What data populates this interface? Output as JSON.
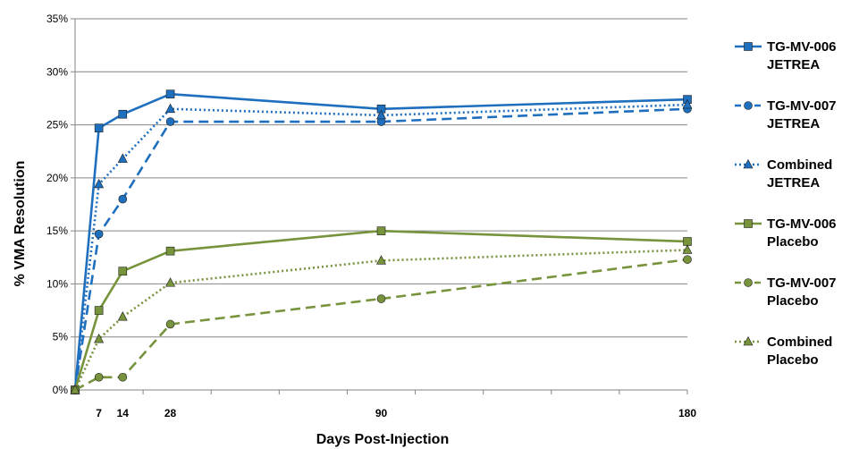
{
  "chart_data": {
    "type": "line",
    "title": "",
    "xlabel": "Days Post-Injection",
    "ylabel": "% VMA Resolution",
    "x_ticks": [
      7,
      14,
      28,
      90,
      180
    ],
    "xlim": [
      0,
      180
    ],
    "ylim": [
      0,
      35
    ],
    "y_ticks": [
      "0%",
      "5%",
      "10%",
      "15%",
      "20%",
      "25%",
      "30%",
      "35%"
    ],
    "grid": "horizontal",
    "legend_position": "right",
    "x": [
      0,
      7,
      14,
      28,
      90,
      180
    ],
    "series": [
      {
        "name": "TG-MV-006 JETREA",
        "legend_lines": [
          "TG-MV-006",
          "JETREA"
        ],
        "color": "#1f6fbf",
        "line_style": "solid",
        "marker": "square",
        "values": [
          0,
          24.7,
          26.0,
          27.9,
          26.5,
          27.4
        ]
      },
      {
        "name": "TG-MV-007 JETREA",
        "legend_lines": [
          "TG-MV-007",
          "JETREA"
        ],
        "color": "#1f6fbf",
        "line_style": "dashed",
        "marker": "circle",
        "values": [
          0,
          14.7,
          18.0,
          25.3,
          25.3,
          26.5
        ]
      },
      {
        "name": "Combined JETREA",
        "legend_lines": [
          "Combined",
          "JETREA"
        ],
        "color": "#1f6fbf",
        "line_style": "dotted",
        "marker": "triangle",
        "values": [
          0,
          19.4,
          21.8,
          26.5,
          25.9,
          26.9
        ]
      },
      {
        "name": "TG-MV-006 Placebo",
        "legend_lines": [
          "TG-MV-006",
          "Placebo"
        ],
        "color": "#77933c",
        "line_style": "solid",
        "marker": "square",
        "values": [
          0,
          7.5,
          11.2,
          13.1,
          15.0,
          14.0
        ]
      },
      {
        "name": "TG-MV-007 Placebo",
        "legend_lines": [
          "TG-MV-007",
          "Placebo"
        ],
        "color": "#77933c",
        "line_style": "dashed",
        "marker": "circle",
        "values": [
          0,
          1.2,
          1.2,
          6.2,
          8.6,
          12.3
        ]
      },
      {
        "name": "Combined Placebo",
        "legend_lines": [
          "Combined",
          "Placebo"
        ],
        "color": "#77933c",
        "line_style": "dotted",
        "marker": "triangle",
        "values": [
          0,
          4.8,
          6.9,
          10.1,
          12.2,
          13.2
        ]
      }
    ]
  }
}
